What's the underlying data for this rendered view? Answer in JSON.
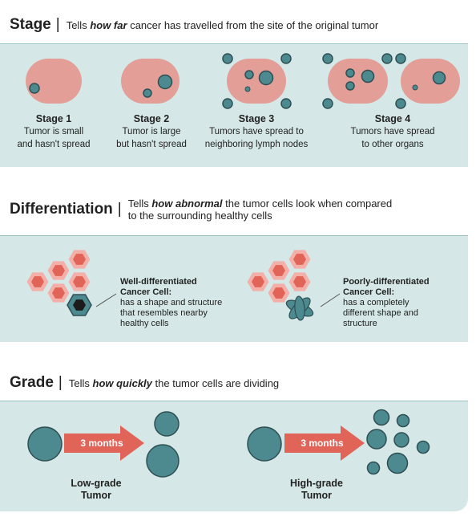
{
  "stage": {
    "title": "Stage",
    "desc_pre": "Tells",
    "desc_em": "how far",
    "desc_post": "cancer has travelled from the site of the original tumor",
    "items": [
      {
        "title": "Stage 1",
        "line1": "Tumor is small",
        "line2": "and hasn't spread"
      },
      {
        "title": "Stage 2",
        "line1": "Tumor is large",
        "line2": "but hasn't spread"
      },
      {
        "title": "Stage 3",
        "line1": "Tumors have spread to",
        "line2": "neighboring lymph nodes"
      },
      {
        "title": "Stage 4",
        "line1": "Tumors have spread",
        "line2": "to other organs"
      }
    ]
  },
  "differentiation": {
    "title": "Differentiation",
    "desc_pre": "Tells",
    "desc_em": "how abnormal",
    "desc_post": "the tumor cells look when compared",
    "desc_line2": "to the surrounding healthy cells",
    "well": {
      "title1": "Well-differentiated",
      "title2": "Cancer Cell:",
      "l1": "has a shape and structure",
      "l2": "that resembles nearby",
      "l3": "healthy cells"
    },
    "poor": {
      "title1": "Poorly-differentiated",
      "title2": "Cancer Cell:",
      "l1": "has a completely",
      "l2": "different shape and",
      "l3": "structure"
    }
  },
  "grade": {
    "title": "Grade",
    "desc_pre": "Tells",
    "desc_em": "how quickly",
    "desc_post": "the tumor cells are dividing",
    "low": {
      "arrow": "3 months",
      "l1": "Low-grade",
      "l2": "Tumor"
    },
    "high": {
      "arrow": "3 months",
      "l1": "High-grade",
      "l2": "Tumor"
    }
  },
  "colors": {
    "band": "#d5e8e7",
    "organ": "#e29e97",
    "node": "#4d8a90",
    "arrow": "#e06458",
    "hex_outer": "#f4b0a8",
    "hex_inner": "#e06458"
  }
}
